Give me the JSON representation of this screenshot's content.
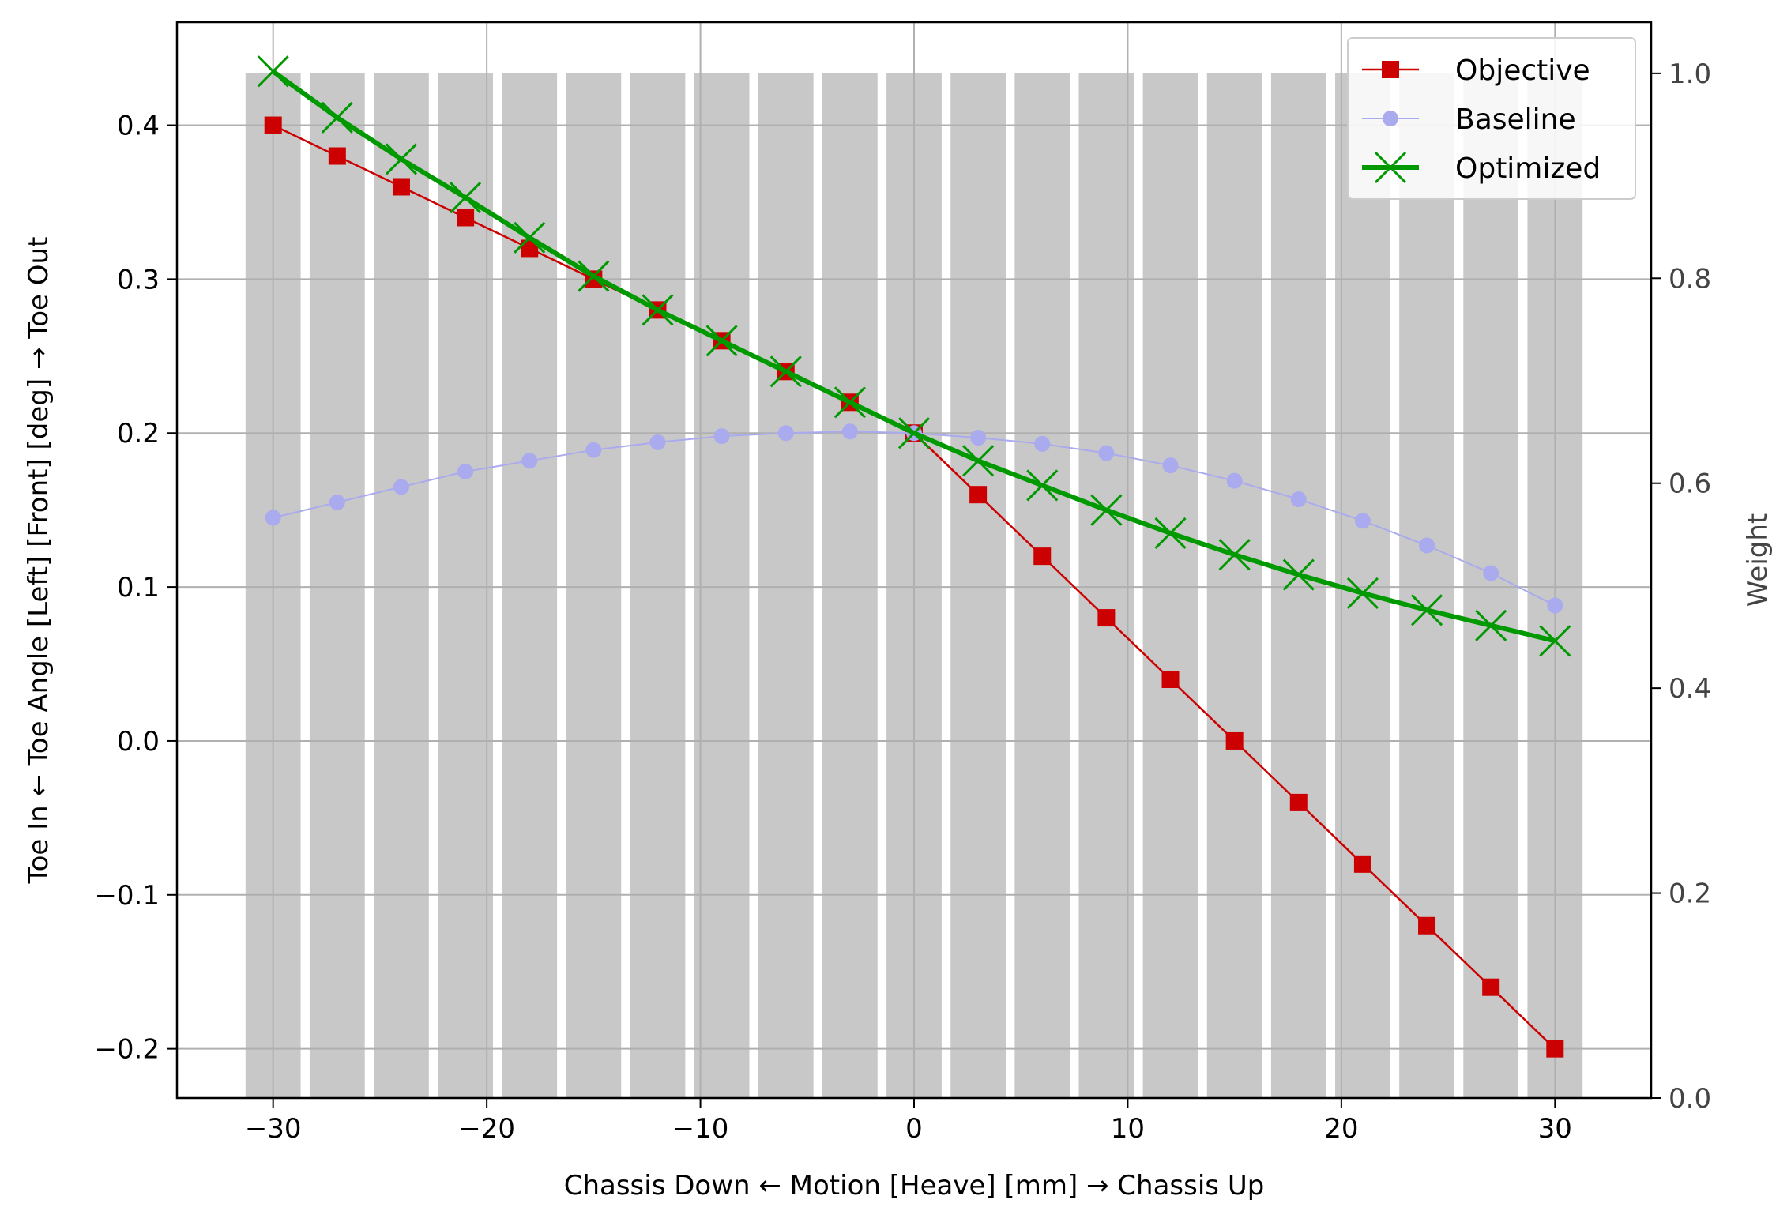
{
  "chart_data": {
    "type": "line",
    "xlabel": "Chassis Down ← Motion [Heave] [mm] → Chassis Up",
    "ylabel": "Toe In ← Toe Angle [Left] [Front] [deg] → Toe Out",
    "y2label": "Weight",
    "xlim": [
      -34.5,
      34.5
    ],
    "ylim": [
      -0.232,
      0.467
    ],
    "y2lim": [
      0.0,
      1.05
    ],
    "xticks": [
      -30,
      -20,
      -10,
      0,
      10,
      20,
      30
    ],
    "xtick_labels": [
      "−30",
      "−20",
      "−10",
      "0",
      "10",
      "20",
      "30"
    ],
    "yticks": [
      -0.2,
      -0.1,
      0.0,
      0.1,
      0.2,
      0.3,
      0.4
    ],
    "ytick_labels": [
      "−0.2",
      "−0.1",
      "0.0",
      "0.1",
      "0.2",
      "0.3",
      "0.4"
    ],
    "y2ticks": [
      0.0,
      0.2,
      0.4,
      0.6,
      0.8,
      1.0
    ],
    "y2tick_labels": [
      "0.0",
      "0.2",
      "0.4",
      "0.6",
      "0.8",
      "1.0"
    ],
    "grid": true,
    "legend_position": "top-right",
    "x": [
      -30,
      -27,
      -24,
      -21,
      -18,
      -15,
      -12,
      -9,
      -6,
      -3,
      0,
      3,
      6,
      9,
      12,
      15,
      18,
      21,
      24,
      27,
      30
    ],
    "weights": {
      "name": "Weight",
      "axis": "right",
      "values": [
        1.0,
        1.0,
        1.0,
        1.0,
        1.0,
        1.0,
        1.0,
        1.0,
        1.0,
        1.0,
        1.0,
        1.0,
        1.0,
        1.0,
        1.0,
        1.0,
        1.0,
        1.0,
        1.0,
        1.0,
        1.0
      ],
      "color": "#c8c8c8"
    },
    "series": [
      {
        "name": "Objective",
        "values": [
          0.4,
          0.38,
          0.36,
          0.34,
          0.32,
          0.3,
          0.28,
          0.26,
          0.24,
          0.22,
          0.2,
          0.16,
          0.12,
          0.08,
          0.04,
          0.0,
          -0.04,
          -0.08,
          -0.12,
          -0.16,
          -0.2
        ],
        "color": "#cc0000",
        "marker": "square"
      },
      {
        "name": "Baseline",
        "values": [
          0.145,
          0.155,
          0.165,
          0.175,
          0.182,
          0.189,
          0.194,
          0.198,
          0.2,
          0.201,
          0.2,
          0.197,
          0.193,
          0.187,
          0.179,
          0.169,
          0.157,
          0.143,
          0.127,
          0.109,
          0.088
        ],
        "color": "#aaaaee",
        "marker": "circle"
      },
      {
        "name": "Optimized",
        "values": [
          0.435,
          0.405,
          0.378,
          0.353,
          0.327,
          0.302,
          0.28,
          0.26,
          0.24,
          0.22,
          0.2,
          0.182,
          0.166,
          0.15,
          0.135,
          0.121,
          0.108,
          0.096,
          0.085,
          0.075,
          0.065
        ],
        "color": "#009900",
        "marker": "x"
      }
    ]
  }
}
